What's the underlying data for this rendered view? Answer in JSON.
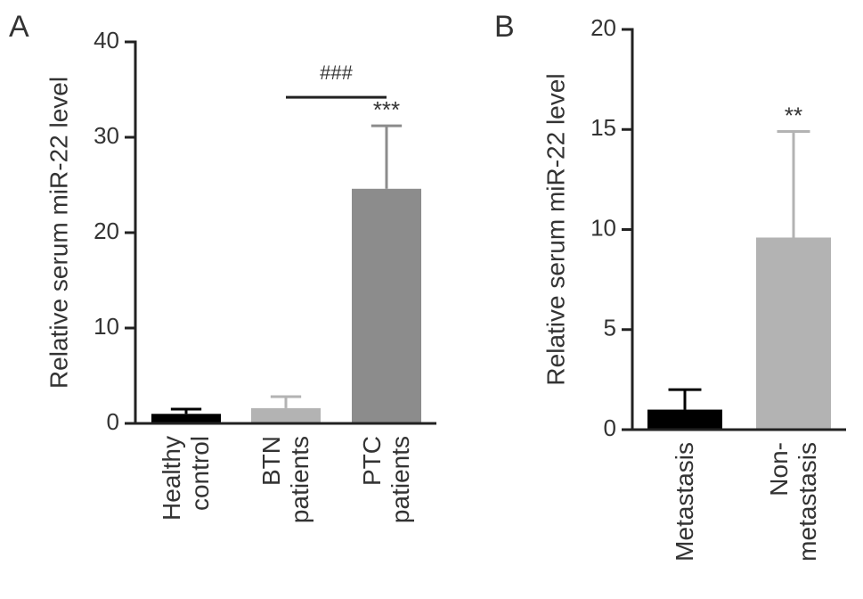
{
  "chart_data": [
    {
      "type": "bar",
      "panel_label": "A",
      "ylabel": "Relative serum miR-22 level",
      "categories": [
        "Healthy control",
        "BTN patients",
        "PTC patients"
      ],
      "values": [
        1.0,
        1.6,
        24.6
      ],
      "errors": [
        0.5,
        1.2,
        6.6
      ],
      "colors": [
        "#000000",
        "#b3b3b3",
        "#8c8c8c"
      ],
      "ylim": [
        0,
        40
      ],
      "yticks": [
        0,
        10,
        20,
        30,
        40
      ],
      "annotations": [
        {
          "text": "***",
          "category": 2
        },
        {
          "text": "###",
          "from": 1,
          "to": 2
        }
      ]
    },
    {
      "type": "bar",
      "panel_label": "B",
      "ylabel": "Relative serum miR-22 level",
      "categories": [
        "Metastasis",
        "Non-metastasis"
      ],
      "values": [
        1.0,
        9.6
      ],
      "errors": [
        1.0,
        5.3
      ],
      "colors": [
        "#000000",
        "#b3b3b3"
      ],
      "ylim": [
        0,
        20
      ],
      "yticks": [
        0,
        5,
        10,
        15,
        20
      ],
      "annotations": [
        {
          "text": "**",
          "category": 1
        }
      ]
    }
  ]
}
